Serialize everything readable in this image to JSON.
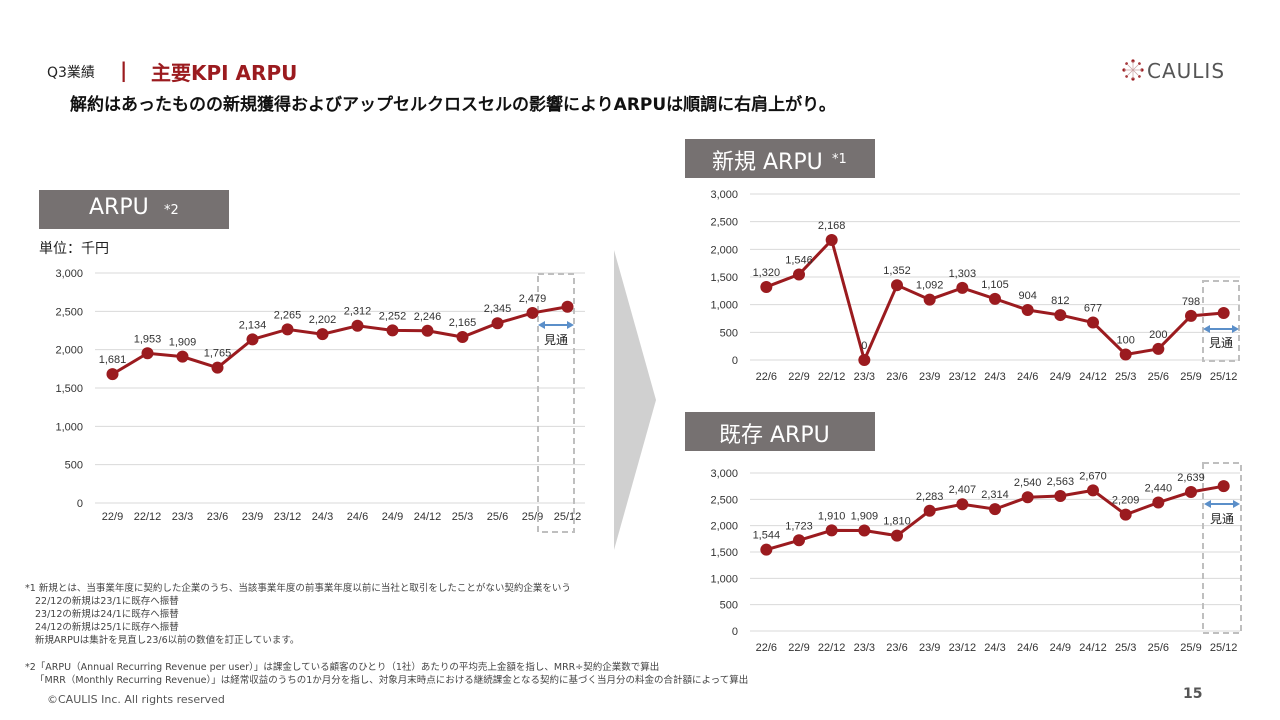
{
  "header": {
    "section": "Q3業績",
    "separator": "|",
    "title": "主要KPI ARPU",
    "subtitle": "解約はあったものの新規獲得およびアップセルクロスセルの影響によりARPUは順調に右肩上がり。"
  },
  "logo": {
    "text": "CAULIS"
  },
  "colors": {
    "line": "#9b1b1f",
    "marker": "#9b1b1f",
    "title_bg": "#767171",
    "forecast_arrow": "#5b8fc9",
    "grid": "#d9d9d9"
  },
  "forecast_label": "見通",
  "chart_data": [
    {
      "id": "main",
      "type": "line",
      "title": "ARPU",
      "title_note": "*2",
      "unit": "単位：千円",
      "categories": [
        "22/9",
        "22/12",
        "23/3",
        "23/6",
        "23/9",
        "23/12",
        "24/3",
        "24/6",
        "24/9",
        "24/12",
        "25/3",
        "25/6",
        "25/9",
        "25/12"
      ],
      "values": [
        1681,
        1953,
        1909,
        1765,
        2134,
        2265,
        2202,
        2312,
        2252,
        2246,
        2165,
        2345,
        2479,
        2560
      ],
      "labels": [
        "1,681",
        "1,953",
        "1,909",
        "1,765",
        "2,134",
        "2,265",
        "2,202",
        "2,312",
        "2,252",
        "2,246",
        "2,165",
        "2,345",
        "2,479",
        ""
      ],
      "ylim": [
        0,
        3000
      ],
      "yticks": [
        "0",
        "500",
        "1,000",
        "1,500",
        "2,000",
        "2,500",
        "3,000"
      ],
      "grid": true,
      "forecast_category": "25/12"
    },
    {
      "id": "new",
      "type": "line",
      "title": "新規 ARPU",
      "title_note": "*1",
      "categories": [
        "22/6",
        "22/9",
        "22/12",
        "23/3",
        "23/6",
        "23/9",
        "23/12",
        "24/3",
        "24/6",
        "24/9",
        "24/12",
        "25/3",
        "25/6",
        "25/9",
        "25/12"
      ],
      "values": [
        1320,
        1546,
        2168,
        0,
        1352,
        1092,
        1303,
        1105,
        904,
        812,
        677,
        100,
        200,
        798,
        850
      ],
      "labels": [
        "1,320",
        "1,546",
        "2,168",
        "0",
        "1,352",
        "1,092",
        "1,303",
        "1,105",
        "904",
        "812",
        "677",
        "100",
        "200",
        "798",
        ""
      ],
      "ylim": [
        0,
        3000
      ],
      "yticks": [
        "0",
        "500",
        "1,000",
        "1,500",
        "2,000",
        "2,500",
        "3,000"
      ],
      "grid": true,
      "forecast_category": "25/12"
    },
    {
      "id": "existing",
      "type": "line",
      "title": "既存 ARPU",
      "categories": [
        "22/6",
        "22/9",
        "22/12",
        "23/3",
        "23/6",
        "23/9",
        "23/12",
        "24/3",
        "24/6",
        "24/9",
        "24/12",
        "25/3",
        "25/6",
        "25/9",
        "25/12"
      ],
      "values": [
        1544,
        1723,
        1910,
        1909,
        1810,
        2283,
        2407,
        2314,
        2540,
        2563,
        2670,
        2209,
        2440,
        2639,
        2750
      ],
      "labels": [
        "1,544",
        "1,723",
        "1,910",
        "1,909",
        "1,810",
        "2,283",
        "2,407",
        "2,314",
        "2,540",
        "2,563",
        "2,670",
        "2,209",
        "2,440",
        "2,639",
        ""
      ],
      "ylim": [
        0,
        3000
      ],
      "yticks": [
        "0",
        "500",
        "1,000",
        "1,500",
        "2,000",
        "2,500",
        "3,000"
      ],
      "grid": true,
      "forecast_category": "25/12"
    }
  ],
  "notes": {
    "note1": [
      "*1 新規とは、当事業年度に契約した企業のうち、当該事業年度の前事業年度以前に当社と取引をしたことがない契約企業をいう",
      "22/12の新規は23/1に既存へ振替",
      "23/12の新規は24/1に既存へ振替",
      "24/12の新規は25/1に既存へ振替",
      "新規ARPUは集計を見直し23/6以前の数値を訂正しています。"
    ],
    "note2": [
      "*2「ARPU（Annual Recurring Revenue per user）」は課金している顧客のひとり（1社）あたりの平均売上金額を指し、MRR÷契約企業数で算出",
      "「MRR（Monthly Recurring Revenue）」は経常収益のうちの1か月分を指し、対象月末時点における継続課金となる契約に基づく当月分の料金の合計額によって算出"
    ]
  },
  "footer": {
    "copyright": "©CAULIS Inc. All rights reserved",
    "page": "15"
  }
}
